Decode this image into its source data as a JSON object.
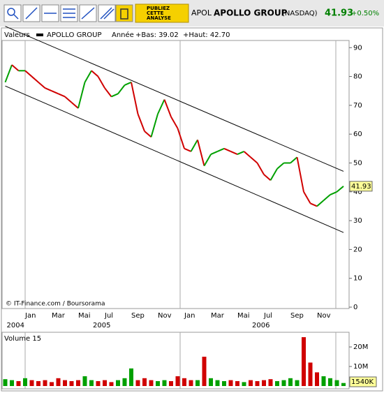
{
  "header": {
    "symbol": "APOL",
    "name": "APOLLO GROUP",
    "market": "(NASDAQ)",
    "price": "41.93",
    "change": "+0.50%"
  },
  "toolbar": {
    "ad": [
      "PUBLIEZ",
      "CETTE",
      "ANALYSE"
    ]
  },
  "chart_data": [
    {
      "type": "line",
      "legend_label": "Valeurs",
      "period": "Année",
      "low_label": "+Bas: 39.02",
      "high_label": "+Haut: 42.70",
      "source": "© IT-Finance.com / Boursorama",
      "categories": [
        null,
        null,
        null,
        "Jan",
        null,
        null,
        null,
        "Mar",
        null,
        null,
        null,
        "Mai",
        null,
        null,
        null,
        "Jul",
        null,
        null,
        null,
        "Sep",
        null,
        null,
        null,
        "Nov",
        null,
        null,
        null,
        "Jan",
        null,
        null,
        null,
        "Mar",
        null,
        null,
        null,
        "Mai",
        null,
        null,
        null,
        "Jul",
        null,
        null,
        null,
        "Sep",
        null,
        null,
        null,
        "Nov",
        null,
        null,
        null,
        null
      ],
      "year_labels": [
        "2004",
        null,
        null,
        null,
        null,
        null,
        null,
        null,
        null,
        null,
        null,
        null,
        null,
        "2005",
        null,
        null,
        null,
        null,
        null,
        null,
        null,
        null,
        null,
        null,
        null,
        null,
        null,
        null,
        null,
        null,
        null,
        null,
        null,
        null,
        null,
        null,
        null,
        "2006",
        null,
        null,
        null,
        null,
        null,
        null,
        null,
        null,
        null,
        null,
        null,
        null,
        null,
        null
      ],
      "series": [
        {
          "name": "APOLLO GROUP",
          "color": "#00a000",
          "down_color": "#d00000",
          "values": [
            78,
            84,
            82,
            82,
            80,
            78,
            76,
            75,
            74,
            73,
            71,
            69,
            78,
            82,
            80,
            76,
            73,
            74,
            77,
            78,
            67,
            61,
            59,
            67,
            72,
            66,
            62,
            55,
            54,
            58,
            49,
            53,
            54,
            55,
            54,
            53,
            54,
            52,
            50,
            46,
            44,
            48,
            50,
            50,
            52,
            40,
            36,
            35,
            37,
            39,
            40,
            41.93
          ]
        }
      ],
      "trendlines": [
        {
          "color": "#000000",
          "values": [
            97.4,
            47.1
          ]
        },
        {
          "color": "#000000",
          "values": [
            76.7,
            25.9
          ]
        }
      ],
      "ylim": [
        0,
        92
      ],
      "yticks": [
        0,
        10,
        20,
        30,
        40,
        50,
        60,
        70,
        80,
        90
      ]
    },
    {
      "type": "bar",
      "title": "Volume 15",
      "color": "#00a000",
      "down_color": "#d00000",
      "values": [
        3500000,
        3000000,
        2500000,
        4000000,
        3000000,
        2500000,
        3000000,
        2000000,
        4000000,
        3000000,
        2500000,
        3000000,
        5000000,
        3000000,
        2500000,
        3000000,
        2000000,
        3000000,
        4000000,
        9000000,
        3000000,
        4000000,
        3000000,
        2500000,
        3000000,
        2500000,
        5000000,
        4000000,
        3000000,
        3000000,
        15000000,
        4000000,
        3000000,
        2500000,
        3000000,
        2500000,
        2000000,
        3000000,
        2500000,
        3000000,
        3500000,
        2500000,
        3000000,
        4000000,
        3000000,
        25000000,
        12000000,
        7000000,
        5000000,
        4000000,
        3000000,
        1540000
      ],
      "value_labels": [
        null,
        null,
        null,
        null,
        null,
        null,
        null,
        null,
        null,
        null,
        null,
        null,
        null,
        null,
        null,
        null,
        null,
        null,
        null,
        null,
        null,
        null,
        null,
        null,
        null,
        null,
        null,
        null,
        null,
        null,
        null,
        null,
        null,
        null,
        null,
        null,
        null,
        null,
        null,
        null,
        null,
        null,
        null,
        null,
        null,
        null,
        null,
        null,
        null,
        null,
        null,
        "1540K"
      ],
      "ylim": [
        0,
        26800000
      ],
      "yticks": [
        {
          "value": 10000000,
          "label": "10M"
        },
        {
          "value": 20000000,
          "label": "20M"
        }
      ]
    }
  ]
}
